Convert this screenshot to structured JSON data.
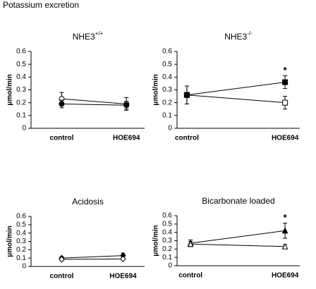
{
  "title": "Potassium excretion",
  "chart_data": [
    {
      "type": "line",
      "title": "NHE3",
      "title_sup": "+/+",
      "ylabel": "μmol/min",
      "categories": [
        "control",
        "HOE694"
      ],
      "ylim": [
        0,
        0.6
      ],
      "yticks": [
        0,
        0.1,
        0.2,
        0.3,
        0.4,
        0.5,
        0.6
      ],
      "series": [
        {
          "color": "#000000",
          "marker": "circle",
          "filled": false,
          "values": [
            0.23,
            0.19
          ],
          "errors": [
            0.05,
            0.05
          ]
        },
        {
          "color": "#000000",
          "marker": "circle",
          "filled": true,
          "values": [
            0.19,
            0.18
          ],
          "errors": [
            0.03,
            0.03
          ]
        }
      ]
    },
    {
      "type": "line",
      "title": "NHE3",
      "title_sup": "-/-",
      "ylabel": "μmol/min",
      "categories": [
        "control",
        "HOE694"
      ],
      "ylim": [
        0,
        0.6
      ],
      "yticks": [
        0,
        0.1,
        0.2,
        0.3,
        0.4,
        0.5,
        0.6
      ],
      "annotation": "*",
      "series": [
        {
          "color": "#000000",
          "marker": "square",
          "filled": false,
          "values": [
            0.26,
            0.2
          ],
          "errors": [
            0.07,
            0.05
          ]
        },
        {
          "color": "#000000",
          "marker": "square",
          "filled": true,
          "values": [
            0.26,
            0.36
          ],
          "errors": [
            0.07,
            0.05
          ]
        }
      ]
    },
    {
      "type": "line",
      "title": "Acidosis",
      "ylabel": "μmol/min",
      "categories": [
        "control",
        "HOE694"
      ],
      "ylim": [
        0,
        0.6
      ],
      "yticks": [
        0,
        0.1,
        0.2,
        0.3,
        0.4,
        0.5,
        0.6
      ],
      "series": [
        {
          "color": "#000000",
          "marker": "diamond",
          "filled": true,
          "values": [
            0.1,
            0.13
          ],
          "errors": [
            0.015,
            0.03
          ]
        },
        {
          "color": "#000000",
          "marker": "diamond",
          "filled": false,
          "values": [
            0.085,
            0.09
          ],
          "errors": [
            0.015,
            0.01
          ]
        }
      ]
    },
    {
      "type": "line",
      "title": "Bicarbonate loaded",
      "ylabel": "μmol/min",
      "categories": [
        "control",
        "HOE694"
      ],
      "ylim": [
        0,
        0.6
      ],
      "yticks": [
        0,
        0.1,
        0.2,
        0.3,
        0.4,
        0.5,
        0.6
      ],
      "annotation": "*",
      "series": [
        {
          "color": "#000000",
          "marker": "triangle",
          "filled": true,
          "values": [
            0.27,
            0.42
          ],
          "errors": [
            0.04,
            0.09
          ]
        },
        {
          "color": "#000000",
          "marker": "triangle",
          "filled": false,
          "values": [
            0.26,
            0.23
          ],
          "errors": [
            0.03,
            0.02
          ]
        }
      ]
    }
  ]
}
